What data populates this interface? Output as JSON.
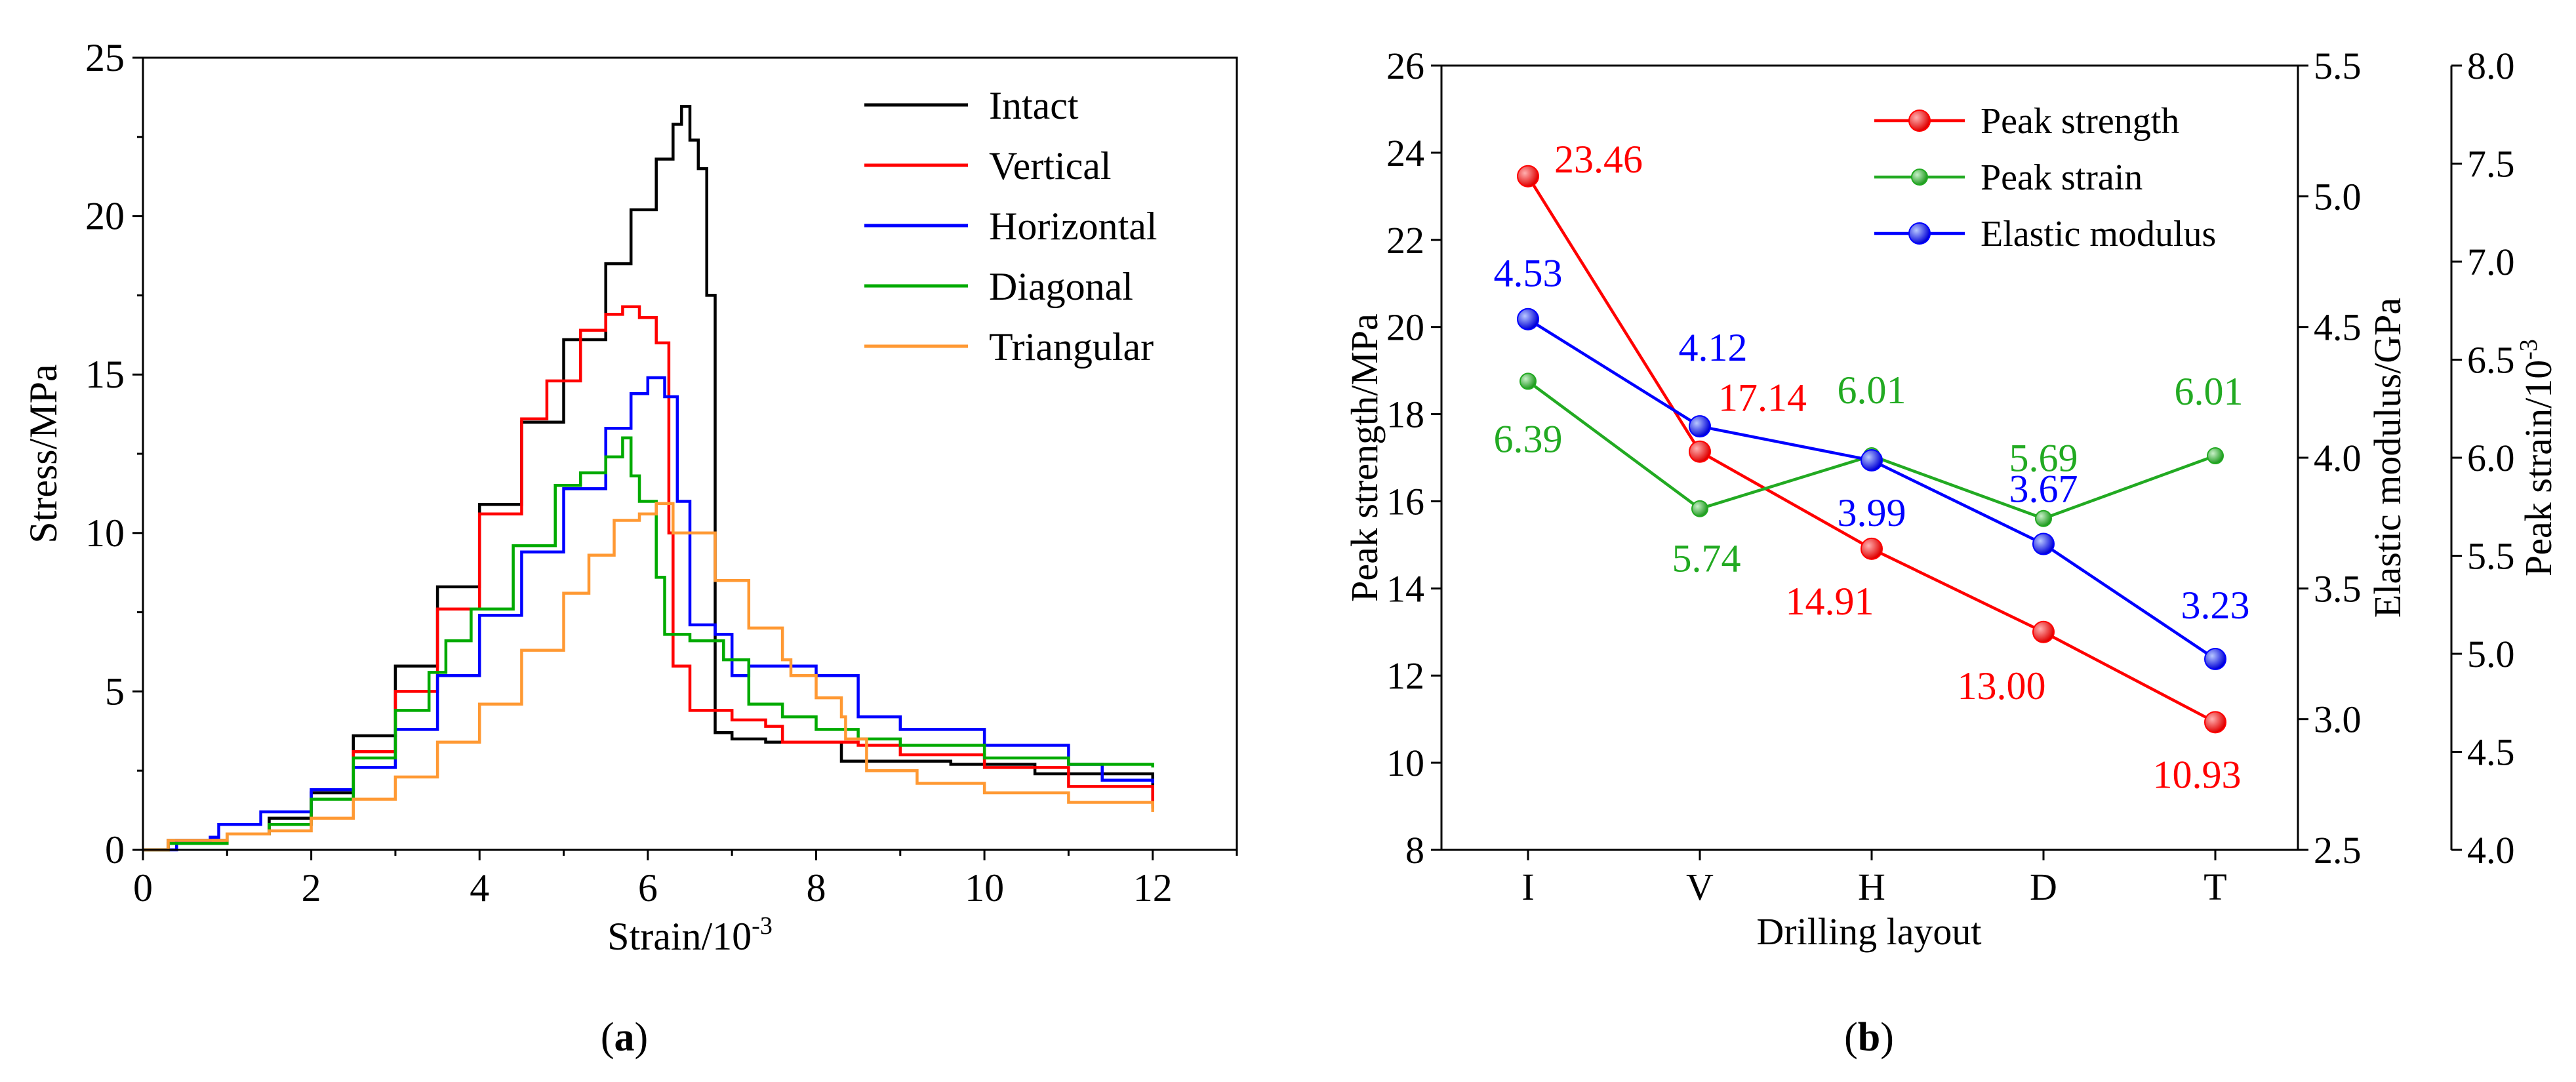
{
  "chart_data": [
    {
      "type": "line",
      "caption": "a",
      "xlabel": "Strain/10",
      "xlabel_sup": "-3",
      "ylabel": "Stress/MPa",
      "xlim": [
        0,
        13
      ],
      "ylim": [
        0,
        25
      ],
      "xticks": [
        "0",
        "2",
        "4",
        "6",
        "8",
        "10",
        "12"
      ],
      "yticks": [
        "0",
        "5",
        "10",
        "15",
        "20",
        "25"
      ],
      "legend_position": "top-right",
      "series": [
        {
          "name": "Intact",
          "color": "#000000",
          "points": [
            [
              0,
              0
            ],
            [
              0.3,
              0.3
            ],
            [
              1,
              0.5
            ],
            [
              1.5,
              1.0
            ],
            [
              2,
              1.8
            ],
            [
              2.5,
              3.6
            ],
            [
              3,
              5.8
            ],
            [
              3.5,
              8.3
            ],
            [
              4,
              10.9
            ],
            [
              4.5,
              13.5
            ],
            [
              5,
              16.1
            ],
            [
              5.5,
              18.5
            ],
            [
              5.8,
              20.2
            ],
            [
              6.1,
              21.8
            ],
            [
              6.3,
              22.9
            ],
            [
              6.4,
              23.46
            ],
            [
              6.5,
              22.4
            ],
            [
              6.6,
              21.5
            ],
            [
              6.7,
              17.5
            ],
            [
              6.8,
              3.7
            ],
            [
              7.0,
              3.5
            ],
            [
              7.4,
              3.4
            ],
            [
              7.8,
              3.4
            ],
            [
              8.2,
              3.4
            ],
            [
              8.3,
              2.8
            ],
            [
              8.8,
              2.8
            ],
            [
              9.6,
              2.7
            ],
            [
              10.6,
              2.4
            ],
            [
              11,
              2.4
            ],
            [
              12,
              1.3
            ]
          ]
        },
        {
          "name": "Vertical",
          "color": "#ff0000",
          "points": [
            [
              0,
              0
            ],
            [
              0.3,
              0.2
            ],
            [
              1,
              0.5
            ],
            [
              1.5,
              0.8
            ],
            [
              2,
              1.6
            ],
            [
              2.5,
              3.1
            ],
            [
              3,
              5.0
            ],
            [
              3.5,
              7.6
            ],
            [
              4,
              10.6
            ],
            [
              4.5,
              13.6
            ],
            [
              4.8,
              14.8
            ],
            [
              5.2,
              16.4
            ],
            [
              5.5,
              16.9
            ],
            [
              5.7,
              17.14
            ],
            [
              5.9,
              16.8
            ],
            [
              6.1,
              16.0
            ],
            [
              6.25,
              10.0
            ],
            [
              6.3,
              5.8
            ],
            [
              6.5,
              4.4
            ],
            [
              7,
              4.1
            ],
            [
              7.4,
              3.9
            ],
            [
              7.6,
              3.4
            ],
            [
              8,
              3.4
            ],
            [
              8.5,
              3.3
            ],
            [
              9,
              3.0
            ],
            [
              10,
              2.6
            ],
            [
              11,
              2.0
            ],
            [
              12,
              1.4
            ]
          ]
        },
        {
          "name": "Horizontal",
          "color": "#0000ff",
          "points": [
            [
              0,
              0
            ],
            [
              0.4,
              0.3
            ],
            [
              0.8,
              0.4
            ],
            [
              0.9,
              0.8
            ],
            [
              1.4,
              1.2
            ],
            [
              2,
              1.9
            ],
            [
              2.5,
              2.6
            ],
            [
              3,
              3.8
            ],
            [
              3.5,
              5.5
            ],
            [
              4,
              7.4
            ],
            [
              4.5,
              9.4
            ],
            [
              5,
              11.4
            ],
            [
              5.5,
              13.3
            ],
            [
              5.8,
              14.4
            ],
            [
              6.0,
              14.9
            ],
            [
              6.2,
              14.3
            ],
            [
              6.35,
              11.0
            ],
            [
              6.5,
              7.1
            ],
            [
              6.8,
              6.8
            ],
            [
              7.0,
              5.5
            ],
            [
              7.2,
              5.8
            ],
            [
              7.6,
              5.8
            ],
            [
              8,
              5.5
            ],
            [
              8.5,
              4.2
            ],
            [
              9,
              3.8
            ],
            [
              10,
              3.3
            ],
            [
              11,
              2.7
            ],
            [
              11.4,
              2.2
            ],
            [
              12,
              2.1
            ]
          ]
        },
        {
          "name": "Diagonal",
          "color": "#00aa00",
          "points": [
            [
              0,
              0
            ],
            [
              0.3,
              0.2
            ],
            [
              1,
              0.5
            ],
            [
              1.5,
              0.8
            ],
            [
              2,
              1.6
            ],
            [
              2.5,
              2.9
            ],
            [
              3,
              4.4
            ],
            [
              3.4,
              5.6
            ],
            [
              3.6,
              6.6
            ],
            [
              3.9,
              7.6
            ],
            [
              4.4,
              9.6
            ],
            [
              4.9,
              11.5
            ],
            [
              5.2,
              11.9
            ],
            [
              5.5,
              12.4
            ],
            [
              5.7,
              13.0
            ],
            [
              5.8,
              11.8
            ],
            [
              5.9,
              11.0
            ],
            [
              6.1,
              8.6
            ],
            [
              6.2,
              6.8
            ],
            [
              6.5,
              6.6
            ],
            [
              6.9,
              6.0
            ],
            [
              7.2,
              4.6
            ],
            [
              7.6,
              4.2
            ],
            [
              8,
              3.8
            ],
            [
              8.5,
              3.5
            ],
            [
              9,
              3.3
            ],
            [
              10,
              2.9
            ],
            [
              11,
              2.7
            ],
            [
              12,
              2.6
            ]
          ]
        },
        {
          "name": "Triangular",
          "color": "#ff9933",
          "points": [
            [
              0,
              0
            ],
            [
              0.3,
              0.3
            ],
            [
              1,
              0.5
            ],
            [
              1.5,
              0.6
            ],
            [
              2,
              1.0
            ],
            [
              2.5,
              1.6
            ],
            [
              3,
              2.3
            ],
            [
              3.5,
              3.4
            ],
            [
              4,
              4.6
            ],
            [
              4.5,
              6.3
            ],
            [
              5,
              8.1
            ],
            [
              5.3,
              9.3
            ],
            [
              5.6,
              10.4
            ],
            [
              5.9,
              10.6
            ],
            [
              6.1,
              10.93
            ],
            [
              6.3,
              10.0
            ],
            [
              6.8,
              8.5
            ],
            [
              7.2,
              7.0
            ],
            [
              7.6,
              6.0
            ],
            [
              7.7,
              5.5
            ],
            [
              8,
              4.8
            ],
            [
              8.3,
              4.2
            ],
            [
              8.35,
              3.5
            ],
            [
              8.6,
              2.5
            ],
            [
              9.2,
              2.1
            ],
            [
              10,
              1.8
            ],
            [
              11,
              1.5
            ],
            [
              12,
              1.2
            ]
          ]
        }
      ]
    },
    {
      "type": "line",
      "caption": "b",
      "xlabel": "Drilling layout",
      "categories": [
        "I",
        "V",
        "H",
        "D",
        "T"
      ],
      "left_axis": {
        "label": "Peak strength/MPa",
        "lim": [
          8,
          26
        ],
        "ticks": [
          "8",
          "10",
          "12",
          "14",
          "16",
          "18",
          "20",
          "22",
          "24",
          "26"
        ]
      },
      "right_axis_1": {
        "label": "Elastic modulus/GPa",
        "lim": [
          2.5,
          5.5
        ],
        "ticks": [
          "2.5",
          "3.0",
          "3.5",
          "4.0",
          "4.5",
          "5.0",
          "5.5"
        ]
      },
      "right_axis_2": {
        "label": "Peak strain/10",
        "label_sup": "-3",
        "lim": [
          4.0,
          8.0
        ],
        "ticks": [
          "4.0",
          "4.5",
          "5.0",
          "5.5",
          "6.0",
          "6.5",
          "7.0",
          "7.5",
          "8.0"
        ]
      },
      "legend_position": "top-right",
      "series": [
        {
          "name": "Peak strength",
          "color": "#ff0000",
          "axis": "left",
          "values": [
            23.46,
            17.14,
            14.91,
            13.0,
            10.93
          ],
          "labels": [
            "23.46",
            "17.14",
            "14.91",
            "13.00",
            "10.93"
          ]
        },
        {
          "name": "Peak strain",
          "color": "#22aa22",
          "axis": "right_2",
          "values": [
            6.39,
            5.74,
            6.01,
            5.69,
            6.01
          ],
          "labels": [
            "6.39",
            "5.74",
            "6.01",
            "5.69",
            "6.01"
          ]
        },
        {
          "name": "Elastic modulus",
          "color": "#0000ff",
          "axis": "right_1",
          "values": [
            4.53,
            4.12,
            3.99,
            3.67,
            3.23
          ],
          "labels": [
            "4.53",
            "4.12",
            "3.99",
            "3.67",
            "3.23"
          ]
        }
      ]
    }
  ]
}
